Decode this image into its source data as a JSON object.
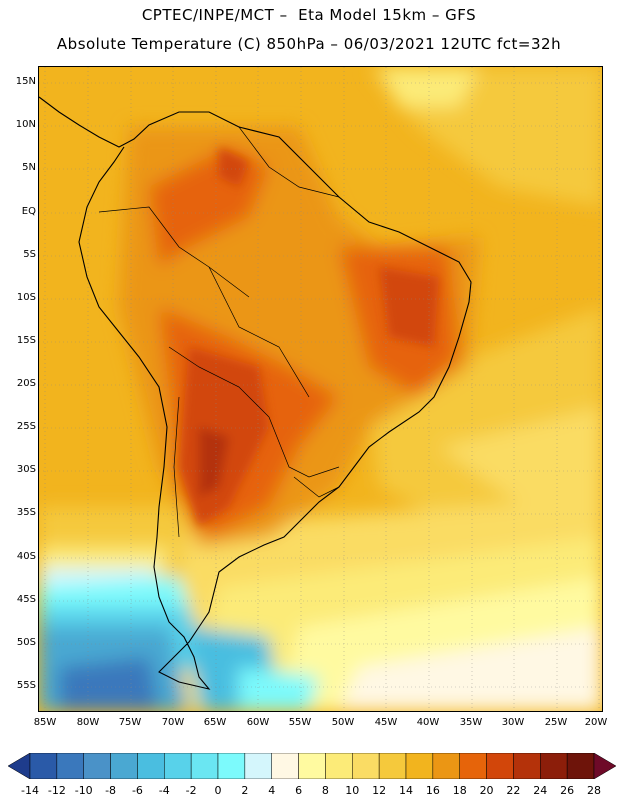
{
  "title": {
    "line1": "CPTEC/INPE/MCT –  Eta Model 15km – GFS",
    "line2": "Absolute Temperature (C) 850hPa – 06/03/2021 12UTC fct=32h"
  },
  "map": {
    "lat_labels": [
      "15N",
      "10N",
      "5N",
      "EQ",
      "5S",
      "10S",
      "15S",
      "20S",
      "25S",
      "30S",
      "35S",
      "40S",
      "45S",
      "50S",
      "55S"
    ],
    "lon_labels": [
      "85W",
      "80W",
      "75W",
      "70W",
      "65W",
      "60W",
      "55W",
      "50W",
      "45W",
      "40W",
      "35W",
      "30W",
      "25W",
      "20W"
    ],
    "extent": {
      "lon_min": -86,
      "lon_max": -20,
      "lat_min": -58,
      "lat_max": 17
    }
  },
  "colorbar": {
    "tick_labels": [
      "-14",
      "-12",
      "-10",
      "-8",
      "-6",
      "-4",
      "-2",
      "0",
      "2",
      "4",
      "6",
      "8",
      "10",
      "12",
      "14",
      "16",
      "18",
      "20",
      "22",
      "24",
      "26",
      "28"
    ],
    "colors": [
      "#1e3c8c",
      "#2a5aa8",
      "#3a78bc",
      "#4a92c8",
      "#4aa8d2",
      "#4abee0",
      "#58d2ea",
      "#6ae6f2",
      "#7cfafc",
      "#d4f6fc",
      "#fff8e4",
      "#fffaa0",
      "#fceb78",
      "#fadc64",
      "#f5c93c",
      "#f2b41e",
      "#eb9614",
      "#e6640a",
      "#d2460a",
      "#b4320a",
      "#8c1e0a",
      "#6e140a",
      "#6e0a28"
    ]
  }
}
